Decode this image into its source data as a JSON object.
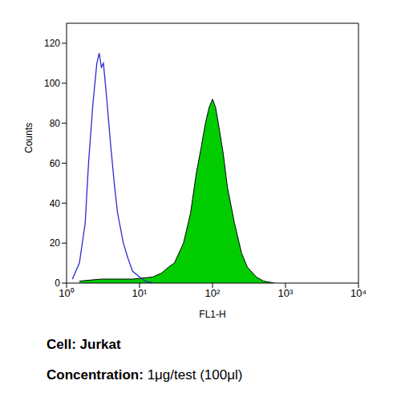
{
  "chart_data": {
    "type": "histogram",
    "x_label": "FL1-H",
    "y_label": "Counts",
    "log": "x",
    "xlim": [
      1,
      10000
    ],
    "xticks": [
      {
        "value": 1,
        "label": "10⁰"
      },
      {
        "value": 10,
        "label": "10¹"
      },
      {
        "value": 100,
        "label": "10²"
      },
      {
        "value": 1000,
        "label": "10³"
      },
      {
        "value": 10000,
        "label": "10⁴"
      }
    ],
    "ylim": [
      0,
      130
    ],
    "yticks": [
      0,
      20,
      40,
      60,
      80,
      100,
      120
    ],
    "series": [
      {
        "type": "line",
        "color": "#2a2ad0",
        "x": [
          1.2,
          1.5,
          1.8,
          2.0,
          2.3,
          2.6,
          2.8,
          3.0,
          3.2,
          3.5,
          4,
          4.5,
          5,
          6,
          7,
          8,
          10,
          12,
          15
        ],
        "values": [
          2,
          10,
          30,
          60,
          90,
          110,
          115,
          108,
          110,
          95,
          70,
          50,
          35,
          20,
          12,
          6,
          3,
          1,
          0
        ]
      },
      {
        "type": "area",
        "color": "#00cc00",
        "x": [
          1.5,
          3,
          8,
          15,
          20,
          25,
          30,
          40,
          50,
          60,
          70,
          80,
          90,
          100,
          110,
          120,
          140,
          160,
          200,
          250,
          300,
          400,
          500,
          700
        ],
        "values": [
          1,
          2,
          2,
          3,
          5,
          8,
          10,
          20,
          35,
          55,
          68,
          80,
          88,
          92,
          88,
          80,
          65,
          48,
          30,
          15,
          8,
          3,
          1,
          0
        ]
      }
    ],
    "caption": [
      {
        "label": "Cell:",
        "text": "Jurkat"
      },
      {
        "label": "Concentration:",
        "text": "1μg/test (100μl)"
      }
    ]
  }
}
